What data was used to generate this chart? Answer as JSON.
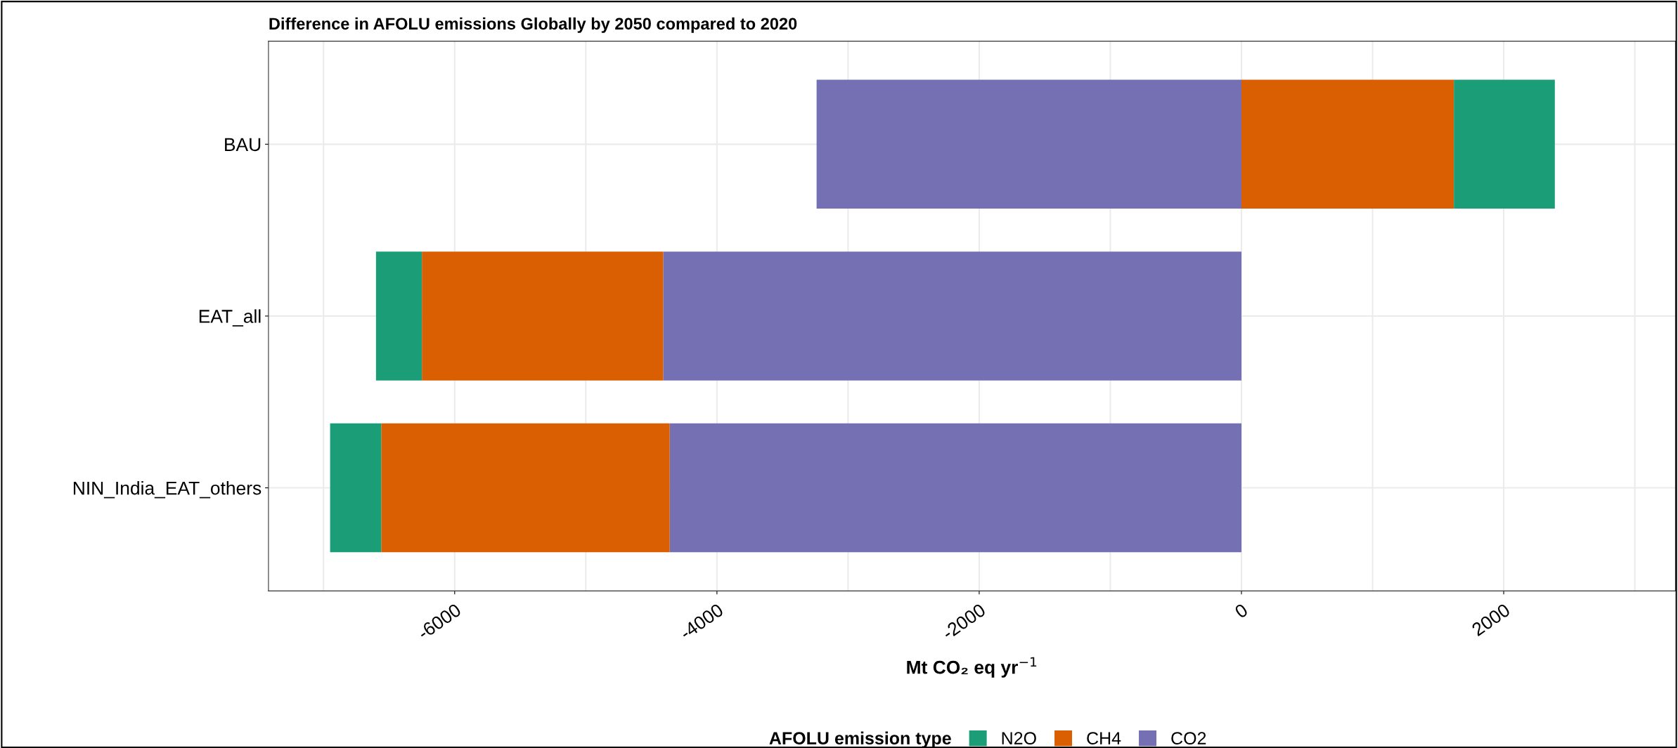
{
  "chart_data": {
    "type": "bar",
    "orientation": "horizontal",
    "stacked": true,
    "title": "Difference in AFOLU emissions Globally by 2050 compared to 2020",
    "xlabel": "Mt CO₂ eq yr$^{−1}$",
    "legend_title": "AFOLU emission type",
    "categories": [
      "BAU",
      "EAT_all",
      "NIN_India_EAT_others"
    ],
    "series": [
      {
        "name": "CO2",
        "color": "#7570b3",
        "values": [
          -3240,
          -4410,
          -4360
        ]
      },
      {
        "name": "CH4",
        "color": "#d95f02",
        "values": [
          1620,
          -1840,
          -2200
        ]
      },
      {
        "name": "N2O",
        "color": "#1b9e77",
        "values": [
          770,
          -350,
          -390
        ]
      }
    ],
    "xlim": [
      -7420,
      3310
    ],
    "xticks": [
      {
        "value": -7000,
        "label": null
      },
      -6000,
      {
        "value": -5000,
        "label": null
      },
      -4000,
      {
        "value": -3000,
        "label": null
      },
      -2000,
      {
        "value": -1000,
        "label": null
      },
      0,
      {
        "value": 1000,
        "label": null
      },
      2000,
      {
        "value": 3000,
        "label": null
      }
    ],
    "grid": true,
    "legend": "bottom"
  }
}
